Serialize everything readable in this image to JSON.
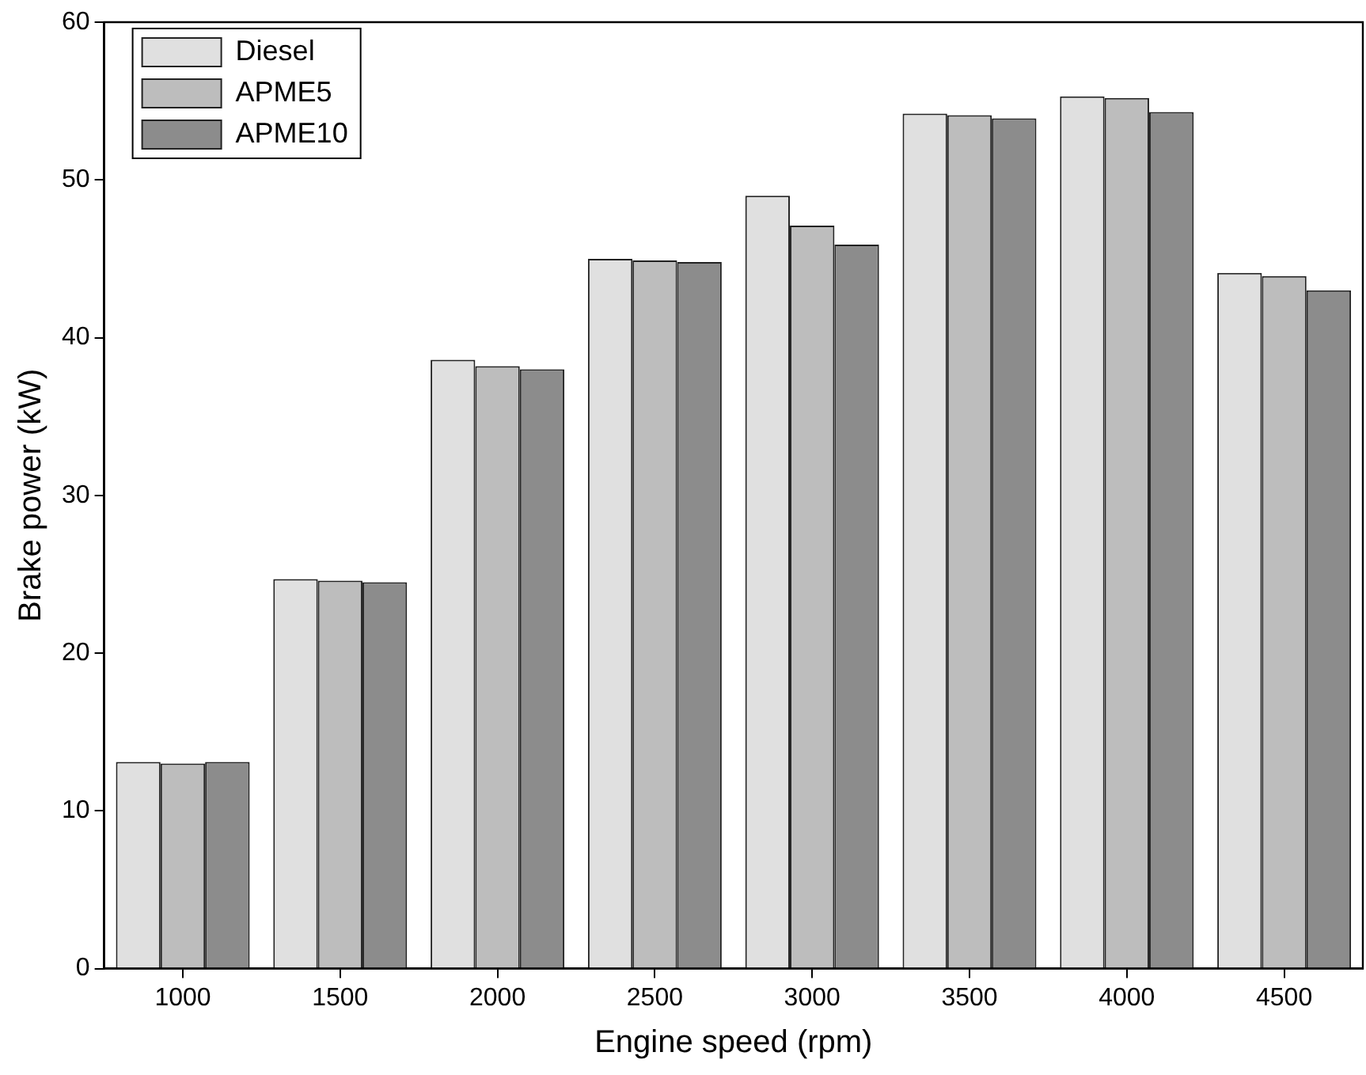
{
  "chart_data": {
    "type": "bar",
    "xlabel": "Engine speed (rpm)",
    "ylabel": "Brake power (kW)",
    "categories": [
      "1000",
      "1500",
      "2000",
      "2500",
      "3000",
      "3500",
      "4000",
      "4500"
    ],
    "series": [
      {
        "name": "Diesel",
        "color": "#e0e0e0",
        "values": [
          13.1,
          24.7,
          38.6,
          45.0,
          49.0,
          54.2,
          55.3,
          44.1
        ]
      },
      {
        "name": "APME5",
        "color": "#bdbdbd",
        "values": [
          13.0,
          24.6,
          38.2,
          44.9,
          47.1,
          54.1,
          55.2,
          43.9
        ]
      },
      {
        "name": "APME10",
        "color": "#8c8c8c",
        "values": [
          13.1,
          24.5,
          38.0,
          44.8,
          45.9,
          53.9,
          54.3,
          43.0
        ]
      }
    ],
    "ylim": [
      0,
      60
    ],
    "yticks": [
      0,
      10,
      20,
      30,
      40,
      50,
      60
    ],
    "grid": false,
    "legend": "top left"
  }
}
